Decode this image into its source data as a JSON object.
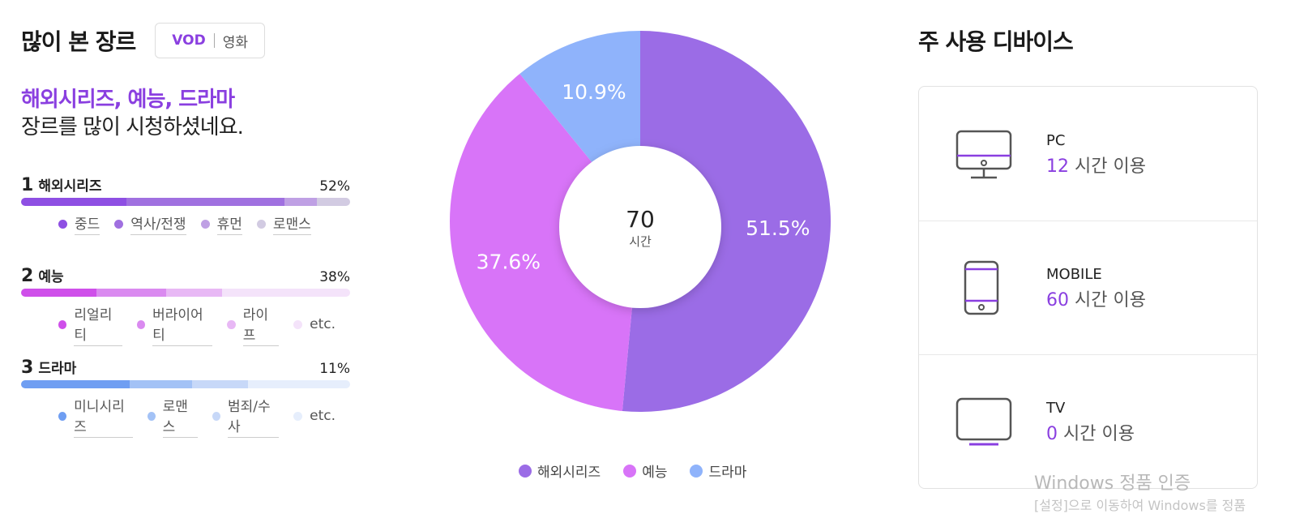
{
  "genre_section": {
    "title": "많이 본 장르",
    "toggle": {
      "vod": "VOD",
      "movie": "영화"
    },
    "summary_highlight": "해외시리즈, 예능, 드라마",
    "summary_rest": "장르를 많이 시청하셨네요.",
    "genres": [
      {
        "rank": "1",
        "name": "해외시리즈",
        "percent": "52%",
        "segments": [
          {
            "label": "중드",
            "color": "#8e4fe3",
            "fraction": 0.32
          },
          {
            "label": "역사/전쟁",
            "color": "#a070e0",
            "fraction": 0.48
          },
          {
            "label": "휴먼",
            "color": "#bfa0e4",
            "fraction": 0.1
          },
          {
            "label": "로맨스",
            "color": "#d2cbe2",
            "fraction": 0.1
          }
        ]
      },
      {
        "rank": "2",
        "name": "예능",
        "percent": "38%",
        "segments": [
          {
            "label": "리얼리티",
            "color": "#cf4fea",
            "fraction": 0.23
          },
          {
            "label": "버라이어티",
            "color": "#da8af0",
            "fraction": 0.21
          },
          {
            "label": "라이프",
            "color": "#e8b8f5",
            "fraction": 0.17
          },
          {
            "label": "etc.",
            "color": "#f4e3fa",
            "fraction": 0.39
          }
        ]
      },
      {
        "rank": "3",
        "name": "드라마",
        "percent": "11%",
        "segments": [
          {
            "label": "미니시리즈",
            "color": "#6f9ef2",
            "fraction": 0.33
          },
          {
            "label": "로맨스",
            "color": "#a3c2f6",
            "fraction": 0.19
          },
          {
            "label": "범죄/수사",
            "color": "#c7d8f8",
            "fraction": 0.17
          },
          {
            "label": "etc.",
            "color": "#e6eefc",
            "fraction": 0.31
          }
        ]
      }
    ]
  },
  "chart_data": {
    "type": "pie",
    "center_value": "70",
    "center_unit": "시간",
    "slices": [
      {
        "name": "해외시리즈",
        "value": 51.5,
        "label": "51.5%",
        "color": "#9b6ce6"
      },
      {
        "name": "예능",
        "value": 37.6,
        "label": "37.6%",
        "color": "#d874f8"
      },
      {
        "name": "드라마",
        "value": 10.9,
        "label": "10.9%",
        "color": "#8fb3fb"
      }
    ]
  },
  "device_section": {
    "title": "주 사용 디바이스",
    "devices": [
      {
        "name": "PC",
        "hours": "12",
        "suffix": "시간 이용",
        "icon": "monitor-icon"
      },
      {
        "name": "MOBILE",
        "hours": "60",
        "suffix": "시간 이용",
        "icon": "smartphone-icon"
      },
      {
        "name": "TV",
        "hours": "0",
        "suffix": "시간 이용",
        "icon": "tv-icon"
      }
    ]
  },
  "watermark": {
    "line1": "Windows 정품 인증",
    "line2": "[설정]으로 이동하여 Windows를 정품"
  }
}
